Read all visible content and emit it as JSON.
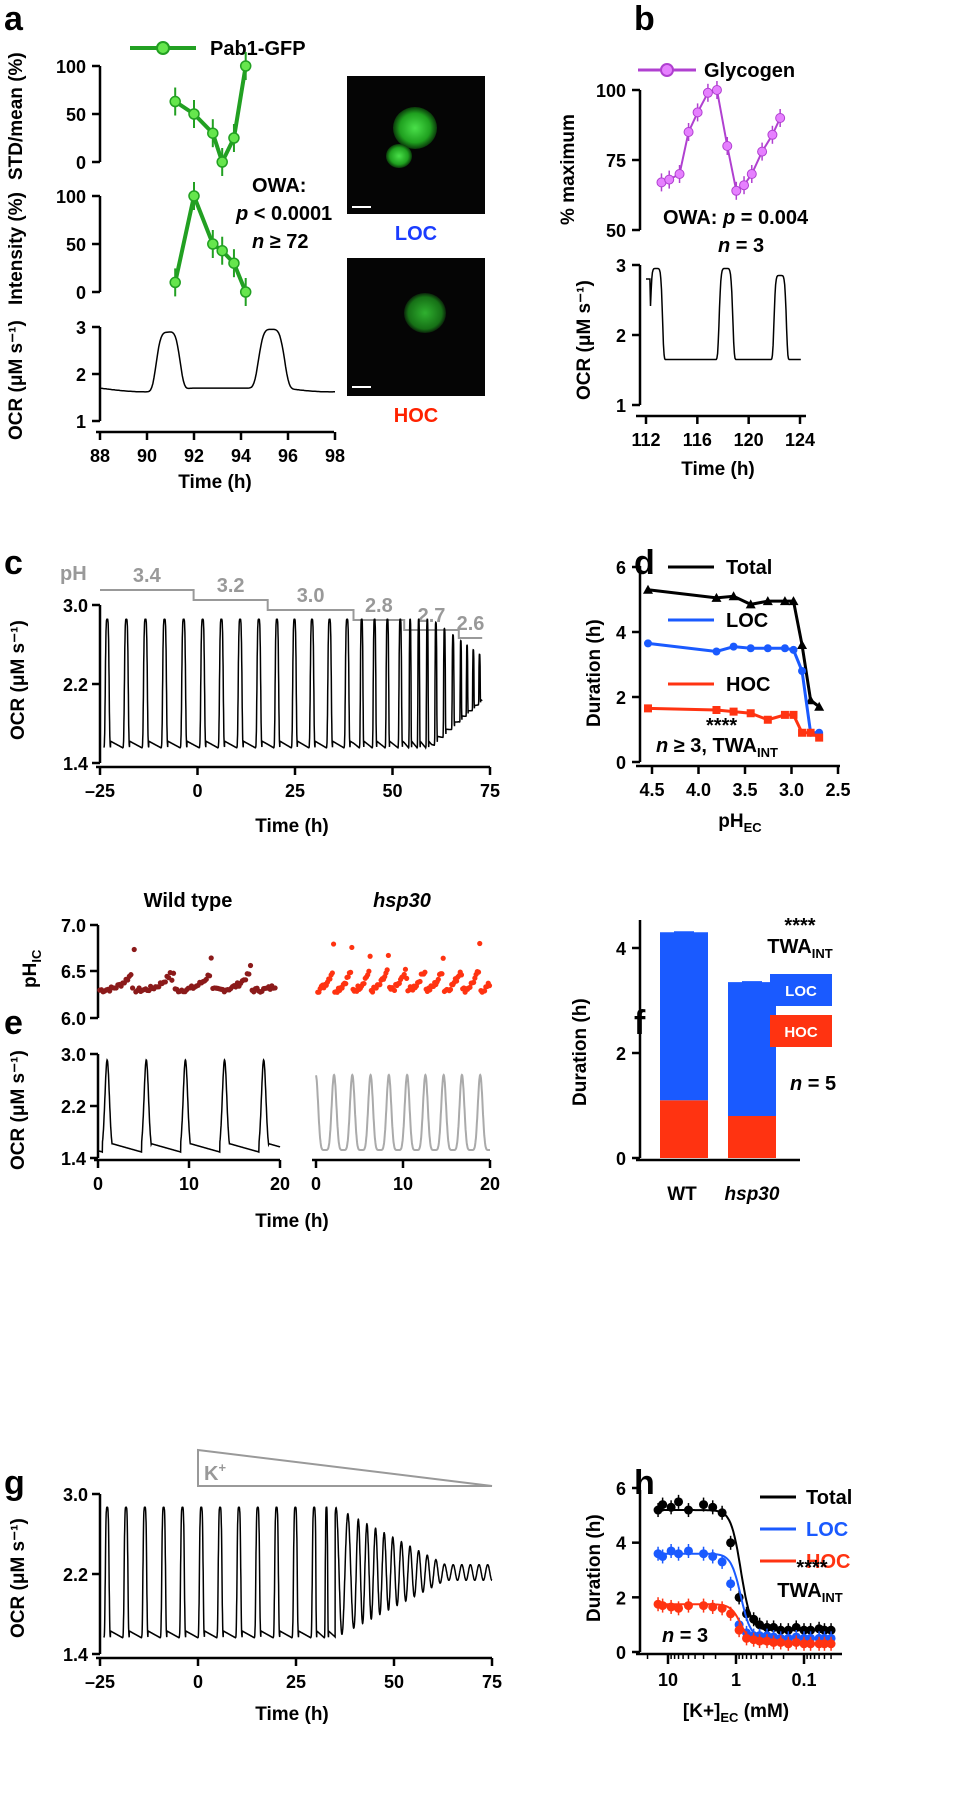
{
  "panels": {
    "a": "a",
    "b": "b",
    "c": "c",
    "d": "d",
    "e": "e",
    "f": "f",
    "g": "g",
    "h": "h"
  },
  "chart_data": [
    {
      "panel": "a",
      "type": "line",
      "legend": "Pab1-GFP",
      "x": [
        91.2,
        92.0,
        92.8,
        93.2,
        93.7,
        94.2
      ],
      "std_mean": [
        63,
        50,
        30,
        0,
        25,
        100
      ],
      "std_ticks": [
        "0",
        "50",
        "100"
      ],
      "std_ylabel": "STD/mean (%)",
      "intensity": [
        10,
        100,
        50,
        43,
        30,
        0
      ],
      "int_ticks": [
        "0",
        "50",
        "100"
      ],
      "int_ylabel": "Intensity (%)",
      "ocr_ticks": [
        "1",
        "2",
        "3"
      ],
      "ocr_ylabel": "OCR (μM s⁻¹)",
      "xticks": [
        "88",
        "90",
        "92",
        "94",
        "96",
        "98"
      ],
      "xlabel": "Time (h)",
      "owa_line1": "OWA:",
      "owa_line2_p": "p",
      "owa_line2_rest": " < 0.0001",
      "owa_line3_n": "n",
      "owa_line3_rest": " ≥ 72",
      "image_labels": {
        "loc": "LOC",
        "hoc": "HOC"
      },
      "colors": {
        "series": "#22a022",
        "marker": "#66e64d",
        "loc": "#1a3cff",
        "hoc": "#ff2200"
      }
    },
    {
      "panel": "b",
      "type": "line",
      "legend": "Glycogen",
      "x": [
        113.2,
        113.8,
        114.6,
        115.3,
        116.0,
        116.8,
        117.5,
        118.3,
        119.0,
        119.6,
        120.2,
        121.0,
        121.8,
        122.4
      ],
      "values": [
        67,
        68,
        70,
        85,
        92,
        99,
        100,
        80,
        64,
        66,
        70,
        78,
        84,
        90
      ],
      "yticks": [
        "50",
        "75",
        "100"
      ],
      "ylabel": "% maximum",
      "owa": "OWA: ",
      "owa_p": "p",
      "owa_rest": " = 0.004",
      "n_label": "n",
      "n_rest": " = 3",
      "ocr_ticks": [
        "1",
        "2",
        "3"
      ],
      "ocr_ylabel": "OCR (μM s⁻¹)",
      "xticks": [
        "112",
        "116",
        "120",
        "124"
      ],
      "xlabel": "Time (h)",
      "colors": {
        "series": "#b040d0",
        "marker": "#e680ff"
      }
    },
    {
      "panel": "c",
      "type": "line",
      "ph_label": "pH",
      "ph_steps": [
        "3.4",
        "3.2",
        "3.0",
        "2.8",
        "2.7",
        "2.6"
      ],
      "yticks": [
        "1.4",
        "2.2",
        "3.0"
      ],
      "ylabel": "OCR (μM s⁻¹)",
      "xticks": [
        "–25",
        "0",
        "25",
        "50",
        "75"
      ],
      "xlabel": "Time (h)",
      "colors": {
        "ph": "#999999"
      }
    },
    {
      "panel": "d",
      "type": "line",
      "x_ph": [
        4.6,
        3.8,
        3.6,
        3.4,
        3.2,
        3.0,
        2.9,
        2.8,
        2.7,
        2.6
      ],
      "series": [
        {
          "name": "Total",
          "values": [
            5.3,
            5.05,
            5.1,
            4.85,
            4.95,
            4.95,
            4.95,
            3.6,
            1.9,
            1.7
          ],
          "color": "#000000"
        },
        {
          "name": "LOC",
          "values": [
            3.65,
            3.4,
            3.55,
            3.5,
            3.5,
            3.5,
            3.45,
            2.8,
            0.9,
            0.9
          ],
          "color": "#1a5aff"
        },
        {
          "name": "HOC",
          "values": [
            1.65,
            1.6,
            1.55,
            1.5,
            1.3,
            1.45,
            1.45,
            0.9,
            0.9,
            0.75
          ],
          "color": "#ff3311"
        }
      ],
      "yticks": [
        "0",
        "2",
        "4",
        "6"
      ],
      "ylabel": "Duration (h)",
      "xticks": [
        "4.5",
        "4.0",
        "3.5",
        "3.0",
        "2.5"
      ],
      "xlabel": "pH",
      "xlabel_sub": "EC",
      "stars": "****",
      "n_note": "n",
      "n_note_rest": " ≥ 3, TWA",
      "n_note_sub": "INT"
    },
    {
      "panel": "e",
      "type": "line",
      "titles": {
        "wt": "Wild type",
        "mut": "hsp30"
      },
      "ph_yticks": [
        "6.0",
        "6.5",
        "7.0"
      ],
      "ph_ylabel": "pH",
      "ph_ylabel_sub": "IC",
      "ocr_yticks": [
        "1.4",
        "2.2",
        "3.0"
      ],
      "ocr_ylabel": "OCR (μM s⁻¹)",
      "xticks": [
        "0",
        "10",
        "20"
      ],
      "xlabel": "Time (h)",
      "colors": {
        "wt": "#8b1a1a",
        "mut": "#ff3311",
        "ocr_wt": "#000000",
        "ocr_mut": "#aaaaaa"
      }
    },
    {
      "panel": "f",
      "type": "bar",
      "categories": [
        "WT",
        "hsp30"
      ],
      "series": [
        {
          "name": "HOC",
          "values": [
            1.1,
            0.8
          ],
          "color": "#ff3311"
        },
        {
          "name": "LOC",
          "values": [
            3.2,
            2.55
          ],
          "color": "#1a5aff"
        }
      ],
      "totals": [
        4.3,
        3.35
      ],
      "yticks": [
        "0",
        "2",
        "4"
      ],
      "ylabel": "Duration (h)",
      "stars": "****",
      "twa": "TWA",
      "twa_sub": "INT",
      "n_label": "n",
      "n_rest": " = 5"
    },
    {
      "panel": "g",
      "type": "line",
      "k_label": "K",
      "k_sup": "+",
      "yticks": [
        "1.4",
        "2.2",
        "3.0"
      ],
      "ylabel": "OCR (μM s⁻¹)",
      "xticks": [
        "–25",
        "0",
        "25",
        "50",
        "75"
      ],
      "xlabel": "Time (h)",
      "colors": {
        "k": "#999999"
      }
    },
    {
      "panel": "h",
      "type": "scatter",
      "x_k": [
        14,
        12,
        9,
        7,
        5,
        3,
        2.2,
        1.6,
        1.2,
        0.9,
        0.7,
        0.55,
        0.45,
        0.35,
        0.28,
        0.22,
        0.17,
        0.13,
        0.1,
        0.08,
        0.06,
        0.05,
        0.04
      ],
      "series": [
        {
          "name": "Total",
          "values": [
            5.2,
            5.4,
            5.3,
            5.5,
            5.2,
            5.4,
            5.3,
            5.1,
            4.0,
            2.0,
            1.4,
            1.2,
            1.0,
            0.9,
            0.9,
            0.8,
            0.8,
            0.9,
            0.8,
            0.8,
            0.85,
            0.8,
            0.8
          ],
          "color": "#000000"
        },
        {
          "name": "LOC",
          "values": [
            3.6,
            3.5,
            3.7,
            3.6,
            3.7,
            3.6,
            3.5,
            3.3,
            2.5,
            1.0,
            0.7,
            0.6,
            0.6,
            0.6,
            0.55,
            0.5,
            0.5,
            0.55,
            0.5,
            0.5,
            0.5,
            0.5,
            0.5
          ],
          "color": "#1a5aff"
        },
        {
          "name": "HOC",
          "values": [
            1.75,
            1.7,
            1.65,
            1.6,
            1.7,
            1.7,
            1.65,
            1.6,
            1.4,
            0.8,
            0.5,
            0.45,
            0.4,
            0.4,
            0.35,
            0.35,
            0.3,
            0.35,
            0.3,
            0.3,
            0.3,
            0.3,
            0.3
          ],
          "color": "#ff3311"
        }
      ],
      "yticks": [
        "0",
        "2",
        "4",
        "6"
      ],
      "ylabel": "Duration (h)",
      "xticks": [
        "10",
        "1",
        "0.1"
      ],
      "xlabel": "[K+]",
      "xlabel_sub": "EC",
      "xlabel_rest": " (mM)",
      "stars": "****",
      "twa": "TWA",
      "twa_sub": "INT",
      "n_label": "n",
      "n_rest": " = 3"
    }
  ]
}
